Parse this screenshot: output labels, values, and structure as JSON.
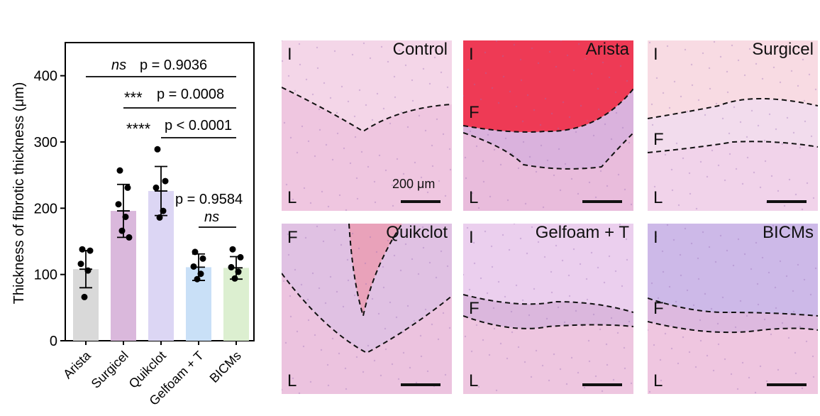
{
  "chart_data": {
    "type": "bar",
    "ylabel": "Thickness of fibrotic thickness (μm)",
    "xlabel": "",
    "ylim": [
      0,
      450
    ],
    "yticks": [
      0,
      100,
      200,
      300,
      400
    ],
    "categories": [
      "Arista",
      "Surgicel",
      "Quikclot",
      "Gelfoam + T",
      "BICMs"
    ],
    "values": [
      108,
      196,
      226,
      111,
      110
    ],
    "errors": [
      28,
      40,
      37,
      20,
      17
    ],
    "colors": [
      "#d9d9d9",
      "#dab8dc",
      "#dcd6f4",
      "#c9e0f7",
      "#dcefd0"
    ],
    "points": [
      [
        138,
        136,
        116,
        106,
        66
      ],
      [
        257,
        231,
        206,
        187,
        166,
        156
      ],
      [
        289,
        241,
        231,
        196,
        186
      ],
      [
        134,
        124,
        112,
        101,
        93
      ],
      [
        138,
        126,
        111,
        104,
        94
      ]
    ],
    "annotations": [
      {
        "sig": "ns",
        "text": "p = 0.9036"
      },
      {
        "sig": "***",
        "text": "p = 0.0008"
      },
      {
        "sig": "****",
        "text": "p < 0.0001"
      },
      {
        "sig": "ns",
        "text": "p = 0.9584"
      }
    ]
  },
  "panels": [
    {
      "title": "Control",
      "labels": {
        "top": "I",
        "bottom": "L"
      },
      "scale": "200 μm"
    },
    {
      "title": "Arista",
      "labels": {
        "top": "I",
        "mid": "F",
        "bottom": "L"
      }
    },
    {
      "title": "Surgicel",
      "labels": {
        "top": "I",
        "mid": "F",
        "bottom": "L"
      }
    },
    {
      "title": "Quikclot",
      "labels": {
        "top": "F",
        "bottom": "L"
      }
    },
    {
      "title": "Gelfoam + T",
      "labels": {
        "top": "I",
        "mid": "F",
        "bottom": "L"
      }
    },
    {
      "title": "BICMs",
      "labels": {
        "top": "I",
        "mid": "F",
        "bottom": "L"
      }
    }
  ]
}
